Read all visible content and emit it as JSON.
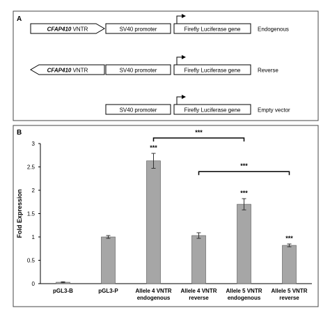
{
  "panel_a": {
    "label": "A",
    "rows": [
      {
        "vntr_gene": "CFAP410",
        "vntr_suffix": " VNTR",
        "orientation": "forward",
        "promoter": "SV40 promoter",
        "reporter": "Firefly Luciferase gene",
        "name": "Endogenous"
      },
      {
        "vntr_gene": "CFAP410",
        "vntr_suffix": " VNTR",
        "orientation": "reverse",
        "promoter": "SV40 promoter",
        "reporter": "Firefly Luciferase gene",
        "name": "Reverse"
      },
      {
        "vntr_gene": "",
        "vntr_suffix": "",
        "orientation": "none",
        "promoter": "SV40 promoter",
        "reporter": "Firefly Luciferase gene",
        "name": "Empty vector"
      }
    ]
  },
  "panel_b": {
    "label": "B"
  },
  "chart_data": {
    "type": "bar",
    "ylabel": "Fold Expression",
    "xlabel": "",
    "title": "",
    "ylim": [
      0,
      3
    ],
    "yticks": [
      0,
      0.5,
      1,
      1.5,
      2,
      2.5,
      3
    ],
    "grid": false,
    "bar_color": "#a6a6a6",
    "categories": [
      [
        "pGL3-B"
      ],
      [
        "pGL3-P"
      ],
      [
        "Allele 4 VNTR",
        "endogenous"
      ],
      [
        "Allele 4 VNTR",
        "reverse"
      ],
      [
        "Allele 5 VNTR",
        "endogenous"
      ],
      [
        "Allele 5 VNTR",
        "reverse"
      ]
    ],
    "values": [
      0.03,
      1.0,
      2.63,
      1.03,
      1.7,
      0.82
    ],
    "errors": [
      0.01,
      0.03,
      0.16,
      0.06,
      0.12,
      0.03
    ],
    "bar_annotations": [
      "",
      "",
      "***",
      "",
      "***",
      "***"
    ],
    "comparisons": [
      {
        "from": 2,
        "to": 4,
        "label": "***",
        "level": 3.12
      },
      {
        "from": 3,
        "to": 5,
        "label": "***",
        "level": 2.4
      }
    ]
  }
}
